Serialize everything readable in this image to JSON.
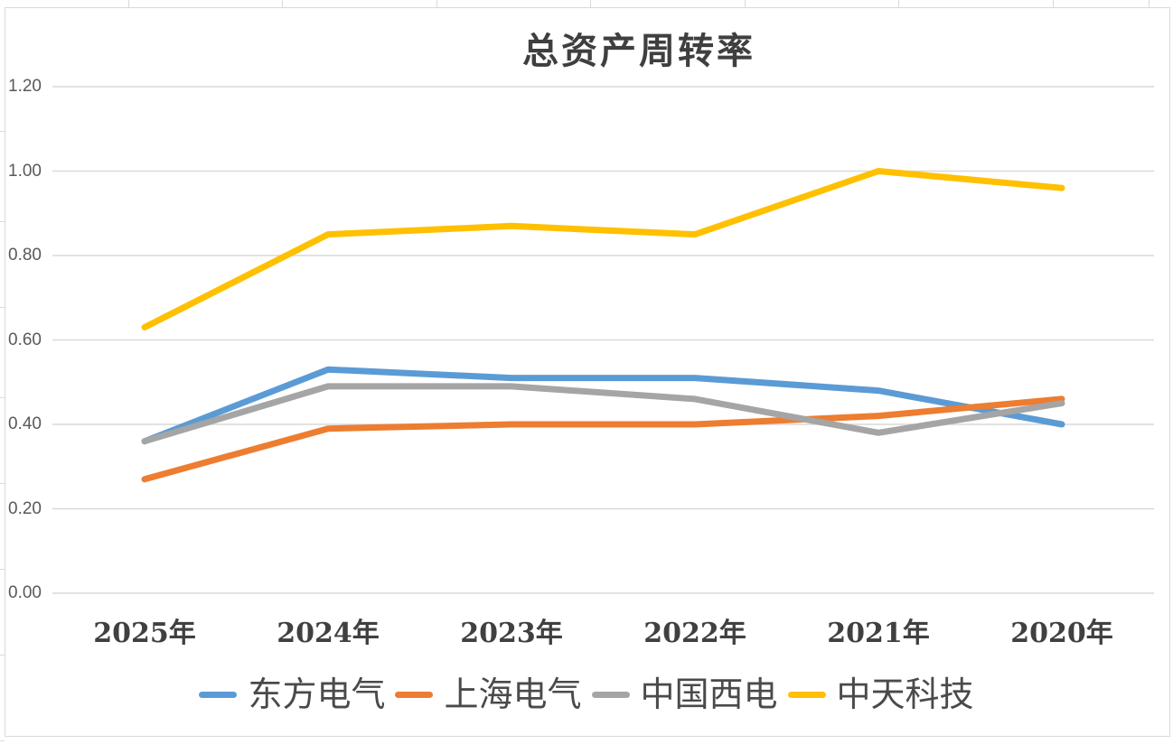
{
  "chart_data": {
    "type": "line",
    "title": "总资产周转率",
    "categories": [
      "2025年",
      "2024年",
      "2023年",
      "2022年",
      "2021年",
      "2020年"
    ],
    "series": [
      {
        "name": "东方电气",
        "color": "#5B9BD5",
        "values": [
          0.36,
          0.53,
          0.51,
          0.51,
          0.48,
          0.4
        ]
      },
      {
        "name": "上海电气",
        "color": "#ED7D31",
        "values": [
          0.27,
          0.39,
          0.4,
          0.4,
          0.42,
          0.46
        ]
      },
      {
        "name": "中国西电",
        "color": "#A5A5A5",
        "values": [
          0.36,
          0.49,
          0.49,
          0.46,
          0.38,
          0.45
        ]
      },
      {
        "name": "中天科技",
        "color": "#FFC000",
        "values": [
          0.63,
          0.85,
          0.87,
          0.85,
          1.0,
          0.96
        ]
      }
    ],
    "xlabel": "",
    "ylabel": "",
    "ylim": [
      0.0,
      1.2
    ],
    "ytick_labels": [
      "0.00",
      "0.20",
      "0.40",
      "0.60",
      "0.80",
      "1.00",
      "1.20"
    ],
    "grid": true,
    "legend_position": "bottom",
    "gridline_color": "#D9D9D9",
    "axis_tick_color": "#595959",
    "category_label_color": "#404040",
    "title_color": "#3F3F3F",
    "background_color": "#FFFFFF"
  }
}
